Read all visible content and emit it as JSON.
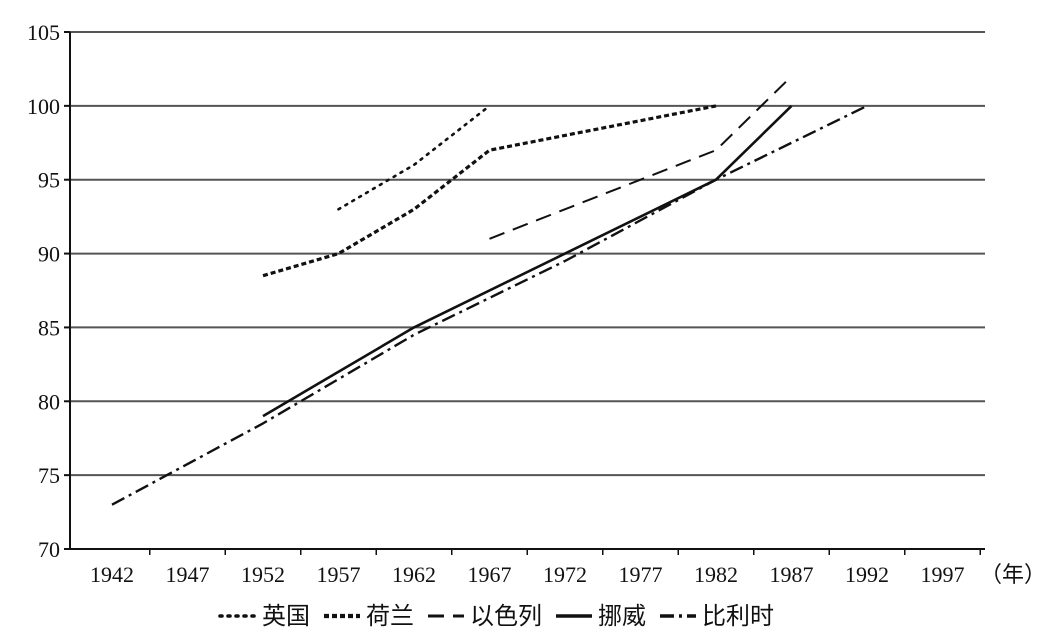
{
  "chart_data": {
    "type": "line",
    "title": "",
    "xlabel": "（年）",
    "ylabel": "",
    "x_ticks": [
      "1942",
      "1947",
      "1952",
      "1957",
      "1962",
      "1967",
      "1972",
      "1977",
      "1982",
      "1987",
      "1992",
      "1997"
    ],
    "xlim": [
      1942,
      1997
    ],
    "ylim": [
      70,
      105
    ],
    "y_ticks": [
      70,
      75,
      80,
      85,
      90,
      95,
      100,
      105
    ],
    "grid": "horizontal",
    "legend_position": "bottom",
    "series": [
      {
        "name": "英国",
        "style": "dotted",
        "color": "#111111",
        "points": [
          [
            1957,
            93
          ],
          [
            1962,
            96
          ],
          [
            1967,
            100
          ]
        ]
      },
      {
        "name": "荷兰",
        "style": "short-dash",
        "color": "#111111",
        "points": [
          [
            1952,
            88.5
          ],
          [
            1957,
            90
          ],
          [
            1962,
            93
          ],
          [
            1967,
            97
          ],
          [
            1972,
            98
          ],
          [
            1982,
            100
          ]
        ]
      },
      {
        "name": "以色列",
        "style": "long-dash",
        "color": "#111111",
        "points": [
          [
            1967,
            91
          ],
          [
            1977,
            95
          ],
          [
            1982,
            97
          ],
          [
            1987,
            102
          ]
        ]
      },
      {
        "name": "挪威",
        "style": "solid",
        "color": "#111111",
        "points": [
          [
            1952,
            79
          ],
          [
            1962,
            85
          ],
          [
            1972,
            90
          ],
          [
            1982,
            95
          ],
          [
            1987,
            100
          ]
        ]
      },
      {
        "name": "比利时",
        "style": "dash-dot",
        "color": "#111111",
        "points": [
          [
            1942,
            73
          ],
          [
            1952,
            78.5
          ],
          [
            1962,
            84.5
          ],
          [
            1972,
            89.5
          ],
          [
            1982,
            95
          ],
          [
            1992,
            100
          ]
        ]
      }
    ]
  }
}
